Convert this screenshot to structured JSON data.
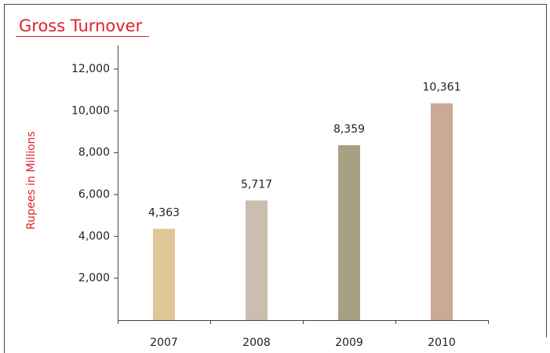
{
  "chart_data": {
    "type": "bar",
    "title": "Gross Turnover",
    "y_label": "Rupees in Millions",
    "categories": [
      "2007",
      "2008",
      "2009",
      "2010"
    ],
    "values": [
      4363,
      5717,
      8359,
      10361
    ],
    "value_labels": [
      "4,363",
      "5,717",
      "8,359",
      "10,361"
    ],
    "colors": [
      "#dfc795",
      "#c9bfae",
      "#a8a083",
      "#cca896"
    ],
    "ylim": [
      0,
      12000
    ],
    "yticks": [
      {
        "value": 2000,
        "label": "2,000"
      },
      {
        "value": 4000,
        "label": "4,000"
      },
      {
        "value": 6000,
        "label": "6,000"
      },
      {
        "value": 8000,
        "label": "8,000"
      },
      {
        "value": 10000,
        "label": "10,000"
      },
      {
        "value": 12000,
        "label": "12,000"
      }
    ],
    "grid": false
  }
}
